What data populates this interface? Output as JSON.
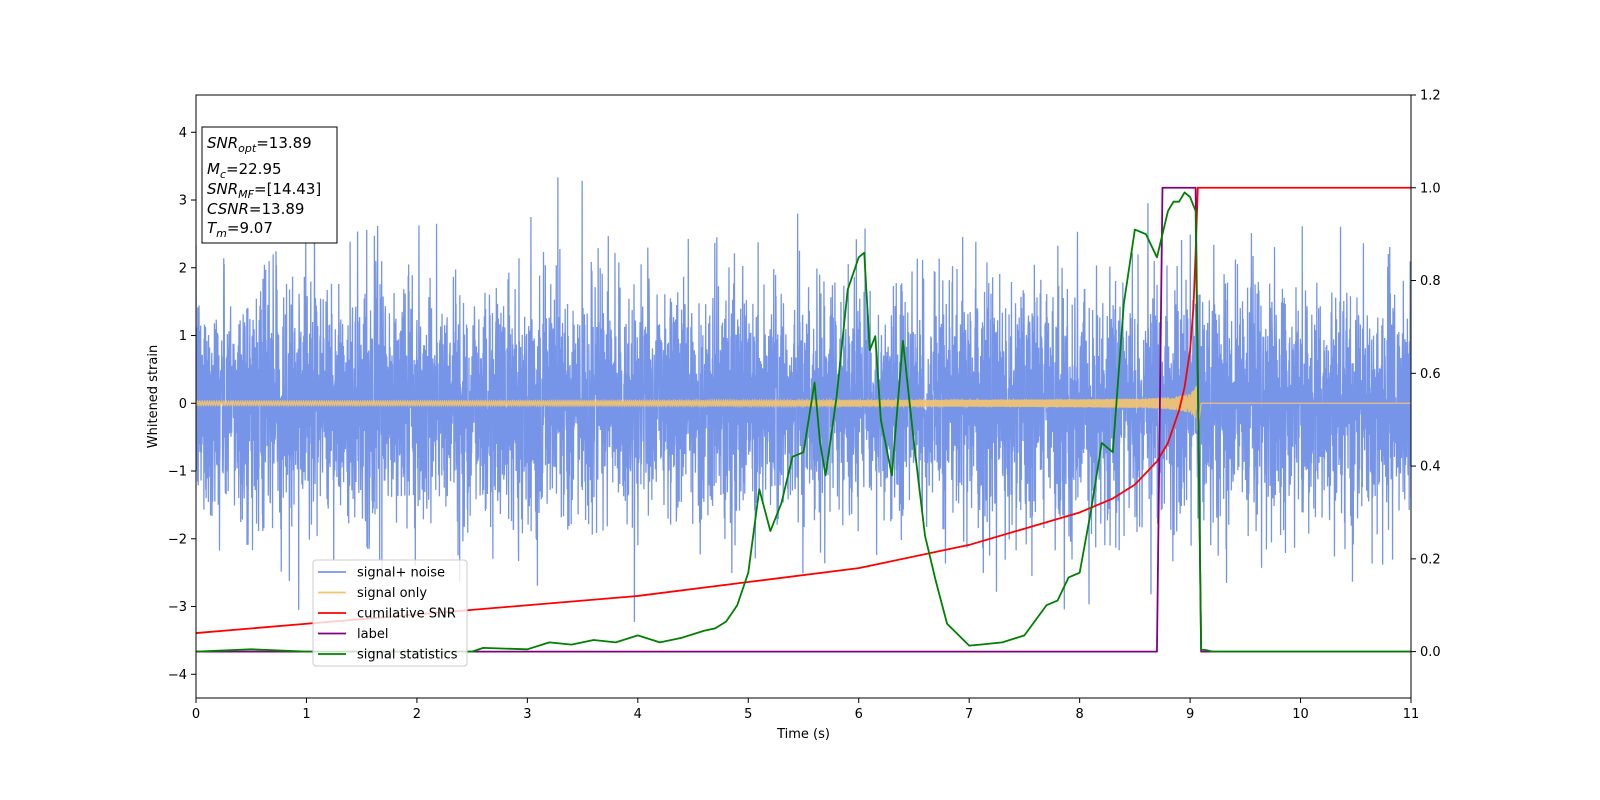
{
  "chart_data": {
    "type": "line",
    "xlabel": "Time (s)",
    "ylabel": "Whitened strain",
    "xlim": [
      0,
      11
    ],
    "ylim_left": [
      -4.35,
      4.55
    ],
    "ylim_right": [
      -0.1,
      1.2
    ],
    "x_ticks": [
      "0",
      "1",
      "2",
      "3",
      "4",
      "5",
      "6",
      "7",
      "8",
      "9",
      "10",
      "11"
    ],
    "y_left_ticks": [
      "−4",
      "−3",
      "−2",
      "−1",
      "0",
      "1",
      "2",
      "3",
      "4"
    ],
    "y_right_ticks": [
      "0.0",
      "0.2",
      "0.4",
      "0.6",
      "0.8",
      "1.0",
      "1.2"
    ],
    "info_box": [
      {
        "key": "snr-opt",
        "main": "SNR",
        "sub": "opt",
        "value": "=13.89"
      },
      {
        "key": "mc",
        "main": "M",
        "sub": "c",
        "value": "=22.95"
      },
      {
        "key": "snr-mf",
        "main": "SNR",
        "sub": "MF",
        "value": "=[14.43]"
      },
      {
        "key": "csnr",
        "main": "CSNR",
        "sub": "",
        "value": "=13.89"
      },
      {
        "key": "tm",
        "main": "T",
        "sub": "m",
        "value": "=9.07"
      }
    ],
    "merger_time": 9.07,
    "series": [
      {
        "name": "signal+ noise",
        "color": "#7795e8",
        "axis": "left",
        "kind": "noise"
      },
      {
        "name": "signal only",
        "color": "#f5c46e",
        "axis": "left",
        "kind": "chirp"
      },
      {
        "name": "cumilative SNR",
        "color": "#ff0000",
        "axis": "right",
        "x": [
          0,
          1,
          2,
          3,
          4,
          5,
          6,
          7,
          8,
          8.3,
          8.5,
          8.7,
          8.8,
          8.9,
          8.95,
          9.0,
          9.03,
          9.05,
          9.07,
          9.1,
          10,
          11
        ],
        "values": [
          0.04,
          0.06,
          0.08,
          0.1,
          0.12,
          0.15,
          0.18,
          0.23,
          0.3,
          0.33,
          0.36,
          0.41,
          0.45,
          0.52,
          0.57,
          0.65,
          0.74,
          0.86,
          1.0,
          1.0,
          1.0,
          1.0
        ]
      },
      {
        "name": "label",
        "color": "#800080",
        "axis": "right",
        "x": [
          0,
          8.7,
          8.75,
          9.05,
          9.1,
          11
        ],
        "values": [
          0.0,
          0.0,
          1.0,
          1.0,
          0.0,
          0.0
        ]
      },
      {
        "name": "signal statistics",
        "color": "#008000",
        "axis": "right",
        "x": [
          0,
          0.5,
          1,
          1.5,
          2,
          2.5,
          2.6,
          3,
          3.2,
          3.4,
          3.6,
          3.8,
          4.0,
          4.2,
          4.4,
          4.6,
          4.7,
          4.8,
          4.9,
          5.0,
          5.1,
          5.2,
          5.3,
          5.4,
          5.5,
          5.6,
          5.65,
          5.7,
          5.8,
          5.9,
          6.0,
          6.05,
          6.1,
          6.15,
          6.2,
          6.3,
          6.4,
          6.5,
          6.6,
          6.7,
          6.8,
          7.0,
          7.1,
          7.3,
          7.5,
          7.7,
          7.8,
          7.9,
          8.0,
          8.1,
          8.2,
          8.3,
          8.4,
          8.5,
          8.6,
          8.7,
          8.8,
          8.85,
          8.9,
          8.95,
          9.0,
          9.05,
          9.1,
          9.15,
          9.2,
          10,
          11
        ],
        "values": [
          0.0,
          0.005,
          0.0,
          0.0,
          0.0,
          0.0,
          0.008,
          0.005,
          0.02,
          0.015,
          0.025,
          0.02,
          0.035,
          0.02,
          0.03,
          0.045,
          0.05,
          0.065,
          0.1,
          0.17,
          0.35,
          0.26,
          0.32,
          0.42,
          0.43,
          0.58,
          0.45,
          0.38,
          0.55,
          0.78,
          0.85,
          0.86,
          0.65,
          0.68,
          0.5,
          0.38,
          0.67,
          0.45,
          0.25,
          0.15,
          0.06,
          0.013,
          0.015,
          0.02,
          0.035,
          0.1,
          0.11,
          0.16,
          0.17,
          0.3,
          0.45,
          0.43,
          0.75,
          0.91,
          0.9,
          0.85,
          0.95,
          0.97,
          0.97,
          0.99,
          0.98,
          0.95,
          0.005,
          0.003,
          0.0,
          0.0,
          0.0
        ]
      }
    ]
  }
}
